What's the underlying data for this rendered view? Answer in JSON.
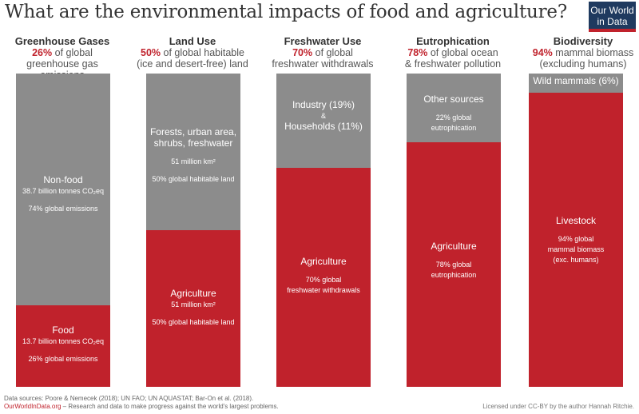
{
  "title": "What are the environmental impacts of food and agriculture?",
  "logo": {
    "line1": "Our World",
    "line2": "in Data"
  },
  "columns": [
    {
      "heading": "Greenhouse Gases",
      "pct": "26%",
      "sub1": "of global",
      "sub2": "greenhouse gas emissions",
      "top_label": "Non-food",
      "top_sub1": "38.7 billion tonnes CO₂eq",
      "top_sub2": "74% global emissions",
      "bottom_label": "Food",
      "bottom_sub1": "13.7 billion tonnes CO₂eq",
      "bottom_sub2": "26% global emissions"
    },
    {
      "heading": "Land Use",
      "pct": "50%",
      "sub1": "of global habitable",
      "sub2": "(ice and desert-free) land",
      "top_label_1": "Forests, urban area,",
      "top_label_2": "shrubs, freshwater",
      "top_sub1": "51 million km²",
      "top_sub2": "50% global habitable land",
      "bottom_label": "Agriculture",
      "bottom_sub1": "51 million km²",
      "bottom_sub2": "50% global habitable land"
    },
    {
      "heading": "Freshwater Use",
      "pct": "70%",
      "sub1": "of global",
      "sub2": "freshwater withdrawals",
      "top_label_1": "Industry (19%)",
      "top_label_amp": "&",
      "top_label_2": "Households (11%)",
      "bottom_label": "Agriculture",
      "bottom_sub1": "70% global",
      "bottom_sub2": "freshwater withdrawals"
    },
    {
      "heading": "Eutrophication",
      "pct": "78%",
      "sub1": "of global ocean",
      "sub2": "& freshwater pollution",
      "top_label": "Other sources",
      "top_sub1": "22% global",
      "top_sub2": "eutrophication",
      "bottom_label": "Agriculture",
      "bottom_sub1": "78% global",
      "bottom_sub2": "eutrophication"
    },
    {
      "heading": "Biodiversity",
      "pct": "94%",
      "sub1": "mammal biomass",
      "sub2": "(excluding humans)",
      "top_label": "Wild mammals (6%)",
      "bottom_label": "Livestock",
      "bottom_sub1": "94% global",
      "bottom_sub2": "mammal biomass",
      "bottom_sub3": "(exc. humans)"
    }
  ],
  "chart_data": {
    "type": "bar",
    "stacked": true,
    "categories": [
      "Greenhouse Gases",
      "Land Use",
      "Freshwater Use",
      "Eutrophication",
      "Biodiversity"
    ],
    "series": [
      {
        "name": "Food / Agriculture / Livestock",
        "values": [
          26,
          50,
          70,
          78,
          94
        ]
      },
      {
        "name": "Non-food / Other",
        "values": [
          74,
          50,
          30,
          22,
          6
        ]
      }
    ],
    "ylim": [
      0,
      100
    ],
    "colors": {
      "agriculture": "#c0222c",
      "other": "#8c8c8c"
    }
  },
  "footer": {
    "sources": "Data sources: Poore & Nemecek (2018); UN FAO; UN AQUASTAT; Bar-On et al. (2018).",
    "site": "OurWorldInData.org",
    "tagline": " – Research and data to make progress against the world's largest problems.",
    "license": "Licensed under CC-BY by the author Hannah Ritchie."
  }
}
